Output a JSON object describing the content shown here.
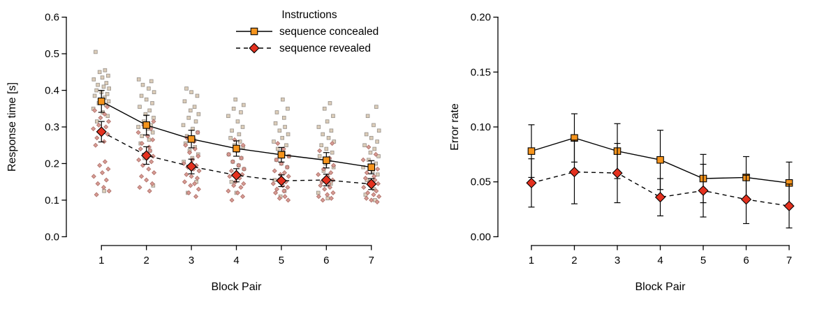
{
  "figure": {
    "background": "#ffffff",
    "colors": {
      "axis": "#000000",
      "text": "#000000",
      "line": "#000000",
      "marker_stroke": "#000000",
      "concealed_fill": "#F5941D",
      "revealed_fill": "#E4311F",
      "scatter_concealed_fill": "#DCCDB9",
      "scatter_concealed_stroke": "#96908A",
      "scatter_revealed_fill": "#D79B94",
      "scatter_revealed_stroke": "#AD6E66"
    }
  },
  "chart_data": [
    {
      "id": "response-time",
      "type": "line",
      "title": "",
      "xlabel": "Block Pair",
      "ylabel": "Response time [s]",
      "x": [
        1,
        2,
        3,
        4,
        5,
        6,
        7
      ],
      "xlim": [
        0.5,
        7.5
      ],
      "ylim": [
        0,
        0.6
      ],
      "xtick_labels": [
        "1",
        "2",
        "3",
        "4",
        "5",
        "6",
        "7"
      ],
      "ytick_values": [
        0,
        0.1,
        0.2,
        0.3,
        0.4,
        0.5,
        0.6
      ],
      "ytick_labels": [
        "0.0",
        "0.1",
        "0.2",
        "0.3",
        "0.4",
        "0.5",
        "0.6"
      ],
      "legend": {
        "visible": true,
        "title": "Instructions"
      },
      "jitter_pattern": [
        -0.13,
        0.08,
        -0.04,
        0.15,
        0.02,
        -0.17,
        0.11,
        -0.08,
        0.05,
        0.17,
        -0.11,
        0,
        0.13,
        -0.15,
        0.07,
        -0.02,
        0.16,
        -0.06,
        0.1,
        -0.18,
        0.03,
        0.14,
        -0.1,
        0.06
      ],
      "series": [
        {
          "name": "sequence concealed",
          "marker": "square",
          "line_style": "solid",
          "values": [
            0.37,
            0.305,
            0.267,
            0.241,
            0.224,
            0.209,
            0.19
          ],
          "err": [
            0.03,
            0.027,
            0.024,
            0.021,
            0.02,
            0.021,
            0.018
          ],
          "scatter": [
            [
              0.505,
              0.455,
              0.45,
              0.44,
              0.435,
              0.43,
              0.42,
              0.415,
              0.41,
              0.405,
              0.4,
              0.395,
              0.39,
              0.385,
              0.38,
              0.375,
              0.37,
              0.365,
              0.36,
              0.35,
              0.34,
              0.33,
              0.315,
              0.125
            ],
            [
              0.43,
              0.425,
              0.415,
              0.405,
              0.395,
              0.385,
              0.375,
              0.365,
              0.355,
              0.345,
              0.335,
              0.325,
              0.315,
              0.305,
              0.3,
              0.295,
              0.285,
              0.275,
              0.265,
              0.255,
              0.235,
              0.215,
              0.14
            ],
            [
              0.405,
              0.395,
              0.385,
              0.37,
              0.355,
              0.345,
              0.335,
              0.325,
              0.315,
              0.305,
              0.295,
              0.285,
              0.275,
              0.265,
              0.255,
              0.245,
              0.235,
              0.225,
              0.215,
              0.205,
              0.15,
              0.12
            ],
            [
              0.375,
              0.36,
              0.35,
              0.34,
              0.33,
              0.315,
              0.3,
              0.29,
              0.28,
              0.27,
              0.26,
              0.25,
              0.245,
              0.235,
              0.225,
              0.215,
              0.205,
              0.195,
              0.185,
              0.15,
              0.12
            ],
            [
              0.375,
              0.35,
              0.34,
              0.325,
              0.31,
              0.3,
              0.29,
              0.28,
              0.27,
              0.26,
              0.25,
              0.24,
              0.23,
              0.22,
              0.21,
              0.2,
              0.19,
              0.155,
              0.125,
              0.11
            ],
            [
              0.365,
              0.35,
              0.33,
              0.315,
              0.3,
              0.29,
              0.28,
              0.27,
              0.26,
              0.25,
              0.24,
              0.23,
              0.22,
              0.21,
              0.2,
              0.19,
              0.18,
              0.145,
              0.12,
              0.105
            ],
            [
              0.355,
              0.33,
              0.305,
              0.29,
              0.28,
              0.27,
              0.26,
              0.25,
              0.24,
              0.23,
              0.22,
              0.21,
              0.2,
              0.19,
              0.18,
              0.17,
              0.155,
              0.13,
              0.115,
              0.1
            ]
          ]
        },
        {
          "name": "sequence revealed",
          "marker": "diamond",
          "line_style": "dashed",
          "values": [
            0.287,
            0.222,
            0.192,
            0.168,
            0.153,
            0.155,
            0.144
          ],
          "err": [
            0.028,
            0.024,
            0.02,
            0.018,
            0.016,
            0.016,
            0.015
          ],
          "scatter": [
            [
              0.375,
              0.355,
              0.345,
              0.335,
              0.325,
              0.315,
              0.305,
              0.3,
              0.295,
              0.285,
              0.28,
              0.27,
              0.26,
              0.25,
              0.205,
              0.195,
              0.185,
              0.175,
              0.165,
              0.155,
              0.145,
              0.135,
              0.125,
              0.115
            ],
            [
              0.315,
              0.305,
              0.295,
              0.285,
              0.275,
              0.265,
              0.255,
              0.245,
              0.24,
              0.235,
              0.225,
              0.22,
              0.215,
              0.21,
              0.205,
              0.195,
              0.185,
              0.175,
              0.165,
              0.155,
              0.145,
              0.135,
              0.125
            ],
            [
              0.285,
              0.27,
              0.26,
              0.25,
              0.24,
              0.23,
              0.22,
              0.21,
              0.2,
              0.195,
              0.19,
              0.185,
              0.18,
              0.17,
              0.165,
              0.16,
              0.15,
              0.145,
              0.14,
              0.13,
              0.12,
              0.11
            ],
            [
              0.265,
              0.25,
              0.24,
              0.225,
              0.215,
              0.205,
              0.195,
              0.185,
              0.18,
              0.175,
              0.17,
              0.165,
              0.16,
              0.15,
              0.145,
              0.14,
              0.135,
              0.125,
              0.12,
              0.11,
              0.1
            ],
            [
              0.255,
              0.24,
              0.22,
              0.21,
              0.2,
              0.19,
              0.18,
              0.175,
              0.17,
              0.165,
              0.155,
              0.15,
              0.145,
              0.14,
              0.135,
              0.13,
              0.125,
              0.12,
              0.11,
              0.105,
              0.1
            ],
            [
              0.255,
              0.235,
              0.215,
              0.205,
              0.195,
              0.185,
              0.175,
              0.17,
              0.165,
              0.155,
              0.15,
              0.145,
              0.14,
              0.135,
              0.13,
              0.12,
              0.115,
              0.11,
              0.105,
              0.1
            ],
            [
              0.245,
              0.225,
              0.21,
              0.195,
              0.185,
              0.175,
              0.165,
              0.16,
              0.155,
              0.15,
              0.145,
              0.14,
              0.135,
              0.125,
              0.12,
              0.115,
              0.11,
              0.105,
              0.1,
              0.095
            ]
          ]
        }
      ]
    },
    {
      "id": "error-rate",
      "type": "line",
      "title": "",
      "xlabel": "Block Pair",
      "ylabel": "Error rate",
      "x": [
        1,
        2,
        3,
        4,
        5,
        6,
        7
      ],
      "xlim": [
        0.5,
        7.5
      ],
      "ylim": [
        0,
        0.2
      ],
      "xtick_labels": [
        "1",
        "2",
        "3",
        "4",
        "5",
        "6",
        "7"
      ],
      "ytick_values": [
        0,
        0.05,
        0.1,
        0.15,
        0.2
      ],
      "ytick_labels": [
        "0.00",
        "0.05",
        "0.10",
        "0.15",
        "0.20"
      ],
      "legend": {
        "visible": false,
        "title": ""
      },
      "series": [
        {
          "name": "sequence concealed",
          "marker": "square",
          "line_style": "solid",
          "values": [
            0.078,
            0.09,
            0.078,
            0.07,
            0.053,
            0.054,
            0.049
          ],
          "err": [
            0.024,
            0.022,
            0.025,
            0.027,
            0.022,
            0.019,
            0.019
          ]
        },
        {
          "name": "sequence revealed",
          "marker": "diamond",
          "line_style": "dashed",
          "values": [
            0.049,
            0.059,
            0.058,
            0.036,
            0.042,
            0.034,
            0.028
          ],
          "err": [
            0.022,
            0.029,
            0.027,
            0.017,
            0.024,
            0.022,
            0.02
          ]
        }
      ]
    }
  ]
}
